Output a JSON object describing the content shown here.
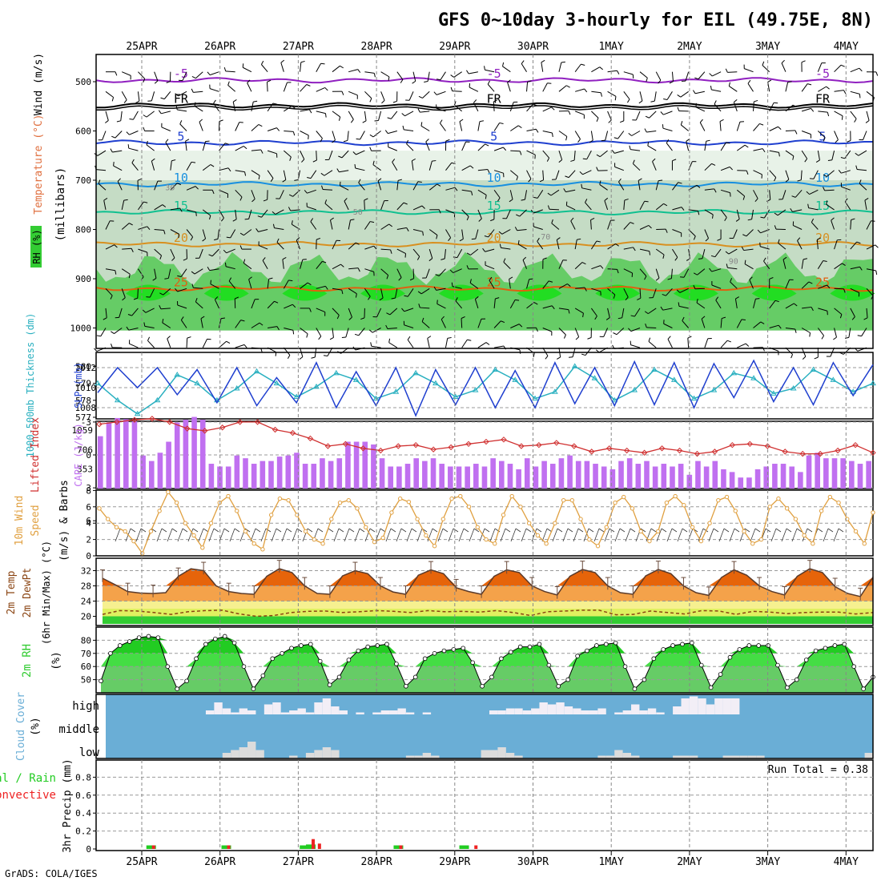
{
  "title": "GFS 0~10day 3-hourly for EIL (49.75E, 8N)",
  "credit": "GrADS: COLA/IGES",
  "dates": [
    "25APR",
    "26APR",
    "27APR",
    "28APR",
    "29APR",
    "30APR",
    "1MAY",
    "2MAY",
    "3MAY",
    "4MAY"
  ],
  "colors": {
    "rh_green": "#33cc33",
    "temp_orange": "#e6640a",
    "dew_brown": "#8b4513",
    "slp_blue": "#1f3fcf",
    "thick_cyan": "#2ab0c0",
    "cape_purple": "#c070f0",
    "li_red": "#d03030",
    "wind_orange": "#e0a040",
    "cloud_blue": "#6aaed6",
    "precip_green": "#22cc22",
    "precip_red": "#ee2222"
  },
  "chart_data": [
    {
      "type": "heatmap",
      "name": "profile",
      "ylabel_parts": [
        "RH (%)",
        "Temperature (°C)",
        "Wind (m/s)"
      ],
      "ylabel2": "(millibars)",
      "yticks": [
        "500",
        "600",
        "700",
        "800",
        "900",
        "1000"
      ],
      "ylim": [
        450,
        1050
      ],
      "isotherms": [
        {
          "label": "-5",
          "level": 497,
          "color": "#9020c0"
        },
        {
          "label": "FR",
          "level": 548,
          "color": "#000000"
        },
        {
          "label": "5",
          "level": 624,
          "color": "#1f3fcf"
        },
        {
          "label": "10",
          "level": 708,
          "color": "#1890e0"
        },
        {
          "label": "15",
          "level": 765,
          "color": "#10c090"
        },
        {
          "label": "20",
          "level": 830,
          "color": "#d89020"
        },
        {
          "label": "25",
          "level": 920,
          "color": "#e06010"
        }
      ],
      "rh_labels": [
        "30",
        "50",
        "70",
        "90"
      ]
    },
    {
      "type": "line",
      "name": "slp_thickness",
      "ylabel": "SLP (mb)",
      "ylabel2": "1000-500mb Thickness (dm)",
      "yticks_left": [
        "577",
        "578",
        "579",
        "580"
      ],
      "yticks_right": [
        "1008",
        "1010",
        "1012"
      ],
      "series": [
        {
          "name": "SLP (mb)",
          "values": [
            1009.5,
            1012,
            1010,
            1012,
            1009.3,
            1011.8,
            1008.5,
            1012,
            1008.2,
            1011,
            1008.5,
            1012.5,
            1008,
            1011.6,
            1008.2,
            1012,
            1007.2,
            1011.8,
            1008.3,
            1012,
            1008,
            1011.7,
            1008,
            1012.5,
            1008.4,
            1012,
            1008.2,
            1012.6,
            1008.3,
            1012.5,
            1008,
            1012.4,
            1009,
            1012.7,
            1008.6,
            1012,
            1008.3,
            1012.5,
            1009.2,
            1012.3
          ]
        },
        {
          "name": "1000-500mb Thickness (dm)",
          "values": [
            579,
            578,
            577.2,
            578,
            579.5,
            579,
            578,
            578.7,
            579.7,
            579,
            578.2,
            578.8,
            579.6,
            579.2,
            578.1,
            578.5,
            579.6,
            579,
            578.2,
            578.6,
            579.8,
            579.2,
            578.1,
            578.5,
            580,
            579.3,
            578,
            578.6,
            579.8,
            579.2,
            578.1,
            578.6,
            579.6,
            579.3,
            578.4,
            578.7,
            579.8,
            579.2,
            578.5,
            579
          ]
        }
      ]
    },
    {
      "type": "bar",
      "name": "cape_li",
      "ylabel": "CAPE (J/kg)",
      "ylabel2": "Lifted Index",
      "yticks_left": [
        "-3",
        "0",
        "3",
        "6"
      ],
      "yticks_right": [
        "353",
        "706",
        "1059"
      ],
      "series": [
        {
          "name": "CAPE (J/kg)",
          "values": [
            950,
            1200,
            1280,
            1260,
            1220,
            600,
            500,
            650,
            850,
            1200,
            1250,
            1300,
            1250,
            450,
            400,
            400,
            600,
            550,
            450,
            500,
            500,
            580,
            600,
            650,
            450,
            450,
            550,
            500,
            550,
            850,
            850,
            850,
            800,
            550,
            400,
            400,
            450,
            550,
            500,
            550,
            450,
            400,
            400,
            400,
            450,
            400,
            550,
            500,
            450,
            350,
            550,
            400,
            500,
            450,
            550,
            600,
            500,
            500,
            450,
            400,
            350,
            500,
            550,
            450,
            500,
            400,
            450,
            400,
            450,
            250,
            500,
            400,
            500,
            350,
            300,
            200,
            200,
            350,
            400,
            450,
            450,
            400,
            300,
            600,
            650,
            550,
            550,
            550,
            500,
            450,
            500
          ]
        },
        {
          "name": "Lifted Index",
          "values": [
            -2.8,
            -3,
            -3.2,
            -3.3,
            -3,
            -2.4,
            -2.2,
            -2.5,
            -3,
            -3,
            -2.3,
            -2,
            -1.5,
            -0.8,
            -1,
            -0.6,
            -0.4,
            -0.8,
            -0.9,
            -0.5,
            -0.7,
            -1,
            -1.2,
            -1.4,
            -0.8,
            -0.9,
            -1.1,
            -0.8,
            -0.3,
            -0.6,
            -0.4,
            -0.2,
            -0.6,
            -0.4,
            -0.1,
            -0.3,
            -0.9,
            -1,
            -0.8,
            -0.3,
            -0.1,
            -0.1,
            -0.4,
            -0.9,
            -0.2
          ]
        }
      ]
    },
    {
      "type": "line",
      "name": "wind10m",
      "ylabel": "10m Wind Speed (m/s) & Barbs",
      "yticks": [
        "0",
        "2",
        "4",
        "6",
        "8"
      ],
      "ylim": [
        0,
        8
      ],
      "series": [
        {
          "name": "10m Wind Speed",
          "values": [
            5.8,
            4.5,
            3.5,
            3,
            1.8,
            0.3,
            3,
            5.5,
            7.8,
            6.5,
            4,
            2.5,
            1,
            4,
            6.5,
            7.3,
            5.5,
            3,
            1.5,
            0.8,
            5,
            7,
            6.8,
            5,
            3,
            2,
            1.5,
            4.5,
            6.5,
            6.8,
            5.8,
            3.5,
            1.7,
            2.2,
            5.3,
            7,
            6.6,
            4.5,
            2.5,
            1.2,
            4.5,
            7,
            7.3,
            6,
            3.5,
            2,
            1.5,
            5,
            7.3,
            6,
            4,
            2.5,
            1.5,
            4,
            6.8,
            6.8,
            4.5,
            2,
            1.2,
            3.5,
            6.5,
            7.2,
            5.8,
            3,
            1.8,
            3,
            6.5,
            7.3,
            6.2,
            3.5,
            1.8,
            4,
            6.8,
            7.2,
            5.5,
            3,
            1.5,
            2,
            6,
            7,
            5.8,
            4.5,
            2.5,
            1.5,
            5.5,
            7.2,
            6.5,
            4.5,
            3,
            1.5,
            5.3
          ]
        }
      ]
    },
    {
      "type": "area",
      "name": "temp2m",
      "ylabel": "2m Temp",
      "ylabel2": "2m DewPt",
      "ylabel3": "(6hr Min/Max) (°C)",
      "yticks": [
        "20",
        "24",
        "28",
        "32"
      ],
      "ylim": [
        18,
        34
      ],
      "series": [
        {
          "name": "2m Temp",
          "values": [
            30,
            28.3,
            26.5,
            26.1,
            26,
            26.2,
            30.5,
            32.5,
            32,
            28,
            26.5,
            26,
            25.8,
            30.5,
            32.5,
            31.5,
            28,
            26,
            25.8,
            30.6,
            32,
            31.2,
            28,
            26.4,
            25.8,
            30.8,
            32.2,
            31.2,
            27.5,
            26.5,
            25.8,
            30.5,
            32.2,
            31.5,
            28,
            26.5,
            25.6,
            30.5,
            32.3,
            31.5,
            28,
            26.2,
            25.8,
            30.6,
            32.3,
            31.2,
            28,
            26.2,
            25.5,
            30.2,
            32.2,
            30.8,
            28,
            26.5,
            25.6,
            30.5,
            32.5,
            31.5,
            27.8,
            26,
            25.2,
            30.3
          ]
        },
        {
          "name": "2m DewPt",
          "values": [
            20.5,
            21.5,
            21.4,
            21,
            20.5,
            21.2,
            21.5,
            21.6,
            20.6,
            20,
            20.2,
            21,
            21.3,
            21.4,
            21,
            21.2,
            21.5,
            21.3,
            21,
            21.5,
            21.2,
            21.3,
            21.1,
            21.5,
            21,
            20.2,
            21.2,
            21.4,
            21.6,
            21.6,
            20.4,
            20.5,
            21.4,
            21,
            20.6,
            21.5,
            21.4,
            20.5,
            21.3,
            21.1,
            20.7,
            21,
            21.1,
            21.1,
            20.6,
            21
          ]
        }
      ]
    },
    {
      "type": "area",
      "name": "rh2m",
      "ylabel": "2m RH (%)",
      "yticks": [
        "50",
        "60",
        "70",
        "80"
      ],
      "ylim": [
        40,
        88
      ],
      "series": [
        {
          "name": "2m RH",
          "values": [
            49,
            70,
            76,
            79,
            82,
            83,
            82,
            60,
            43,
            49,
            66,
            77,
            81,
            83,
            78,
            60,
            43,
            53,
            66,
            70,
            74,
            76,
            77,
            64,
            46,
            52,
            65,
            72,
            75,
            76,
            77,
            62,
            45,
            52,
            66,
            70,
            72,
            73,
            74,
            63,
            45,
            52,
            66,
            71,
            75,
            75,
            77,
            61,
            45,
            50,
            68,
            72,
            76,
            77,
            78,
            60,
            43,
            50,
            66,
            73,
            76,
            77,
            78,
            61,
            44,
            54,
            67,
            73,
            76,
            76,
            76,
            61,
            44,
            50,
            65,
            72,
            74,
            76,
            77,
            60,
            43,
            52
          ]
        }
      ]
    },
    {
      "type": "bar",
      "name": "cloud",
      "ylabel": "Cloud Cover (%)",
      "yticks": [
        "high",
        "middle",
        "low"
      ],
      "series": [
        {
          "name": "high",
          "values": [
            0,
            0,
            0,
            0,
            0,
            0,
            0,
            0,
            0,
            0,
            0,
            0,
            10,
            30,
            15,
            5,
            15,
            10,
            0,
            25,
            30,
            5,
            10,
            15,
            5,
            30,
            40,
            20,
            10,
            0,
            5,
            0,
            5,
            10,
            10,
            15,
            5,
            0,
            5,
            0,
            0,
            0,
            0,
            0,
            0,
            0,
            10,
            10,
            15,
            15,
            10,
            15,
            30,
            25,
            30,
            20,
            15,
            10,
            10,
            15,
            0,
            5,
            10,
            25,
            10,
            15,
            5,
            0,
            20,
            40,
            45,
            40,
            25,
            40,
            40,
            40,
            0,
            0,
            0,
            0,
            0,
            0,
            0,
            0,
            0,
            0,
            0,
            0,
            0,
            0,
            0,
            0
          ]
        },
        {
          "name": "low",
          "values": [
            0,
            0,
            0,
            0,
            0,
            0,
            0,
            0,
            0,
            0,
            0,
            0,
            0,
            0,
            10,
            15,
            20,
            30,
            15,
            0,
            0,
            0,
            5,
            0,
            10,
            15,
            20,
            15,
            0,
            0,
            0,
            0,
            0,
            0,
            0,
            0,
            5,
            5,
            10,
            5,
            0,
            0,
            0,
            0,
            0,
            15,
            15,
            20,
            10,
            5,
            0,
            0,
            0,
            0,
            0,
            0,
            0,
            0,
            0,
            5,
            5,
            15,
            10,
            5,
            0,
            0,
            0,
            0,
            5,
            5,
            5,
            0,
            0,
            0,
            5,
            5,
            5,
            5,
            5,
            0,
            0,
            0,
            0,
            0,
            0,
            0,
            0,
            0,
            0,
            0,
            0,
            10,
            0
          ]
        }
      ]
    },
    {
      "type": "bar",
      "name": "precip",
      "ylabel": "3hr Precip (mm)",
      "legend": [
        "Total / Rain",
        "Convective"
      ],
      "run_total_label": "Run Total = 0.38",
      "yticks": [
        "0",
        "0.2",
        "0.4",
        "0.6",
        "0.8"
      ],
      "ylim": [
        0,
        1.0
      ],
      "bars": [
        {
          "x": 0.12,
          "total": 0.04,
          "conv": 0.04
        },
        {
          "x": 1.08,
          "total": 0.04,
          "conv": 0.04
        },
        {
          "x": 2.08,
          "total": 0.04,
          "conv": 0.0
        },
        {
          "x": 2.16,
          "total": 0.05,
          "conv": 0.11
        },
        {
          "x": 2.24,
          "total": 0.0,
          "conv": 0.06
        },
        {
          "x": 3.28,
          "total": 0.04,
          "conv": 0.04
        },
        {
          "x": 4.12,
          "total": 0.04,
          "conv": 0.0
        },
        {
          "x": 4.24,
          "total": 0.0,
          "conv": 0.04
        }
      ]
    }
  ]
}
